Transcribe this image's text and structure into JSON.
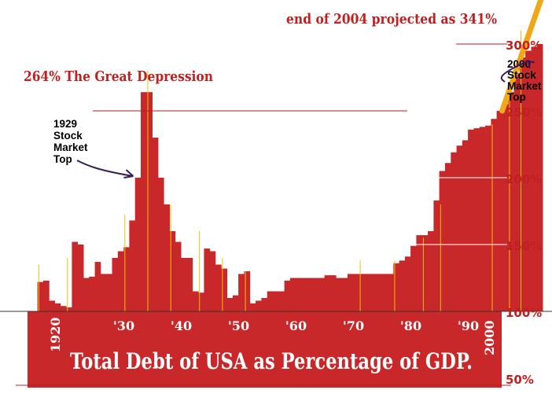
{
  "chart_data": {
    "type": "bar",
    "title": "Total Debt of USA as Percentage of GDP.",
    "ylim": [
      50,
      320
    ],
    "y_ticks": [
      {
        "value": 300,
        "label": "300%"
      },
      {
        "value": 250,
        "label": "250%"
      },
      {
        "value": 200,
        "label": "200%"
      },
      {
        "value": 150,
        "label": "150%"
      },
      {
        "value": 100,
        "label": "100%"
      },
      {
        "value": 50,
        "label": "50%"
      }
    ],
    "x_ticks": [
      {
        "year": 1920,
        "label": "1920",
        "vertical": true
      },
      {
        "year": 1930,
        "label": "'30",
        "vertical": false
      },
      {
        "year": 1940,
        "label": "'40",
        "vertical": false
      },
      {
        "year": 1950,
        "label": "'50",
        "vertical": false
      },
      {
        "year": 1960,
        "label": "'60",
        "vertical": false
      },
      {
        "year": 1970,
        "label": "'70",
        "vertical": false
      },
      {
        "year": 1980,
        "label": "'80",
        "vertical": false
      },
      {
        "year": 1990,
        "label": "'90",
        "vertical": false
      },
      {
        "year": 2000,
        "label": "2000",
        "vertical": true
      }
    ],
    "x": [
      1916,
      1917,
      1918,
      1919,
      1920,
      1921,
      1922,
      1923,
      1924,
      1925,
      1926,
      1927,
      1928,
      1929,
      1930,
      1931,
      1932,
      1933,
      1934,
      1935,
      1936,
      1937,
      1938,
      1939,
      1940,
      1941,
      1942,
      1943,
      1944,
      1945,
      1946,
      1947,
      1948,
      1949,
      1950,
      1951,
      1952,
      1953,
      1954,
      1955,
      1956,
      1957,
      1958,
      1959,
      1960,
      1961,
      1962,
      1963,
      1964,
      1965,
      1966,
      1967,
      1968,
      1969,
      1970,
      1971,
      1972,
      1973,
      1974,
      1975,
      1976,
      1977,
      1978,
      1979,
      1980,
      1981,
      1982,
      1983,
      1984,
      1985,
      1986,
      1987,
      1988,
      1989,
      1990,
      1991,
      1992,
      1993,
      1994,
      1995,
      1996,
      1997,
      1998,
      1999,
      2000,
      2001,
      2002,
      2003
    ],
    "values": [
      122,
      123,
      108,
      106,
      104,
      103,
      152,
      150,
      125,
      126,
      137,
      128,
      128,
      140,
      145,
      148,
      168,
      200,
      264,
      264,
      230,
      200,
      180,
      160,
      152,
      140,
      140,
      115,
      114,
      147,
      145,
      135,
      132,
      110,
      112,
      128,
      130,
      106,
      108,
      110,
      115,
      115,
      115,
      123,
      125,
      125,
      125,
      125,
      125,
      125,
      127,
      127,
      125,
      125,
      128,
      128,
      128,
      128,
      128,
      128,
      128,
      128,
      136,
      138,
      141,
      149,
      157,
      157,
      160,
      183,
      205,
      211,
      219,
      224,
      228,
      236,
      237,
      238,
      239,
      244,
      250,
      255,
      264,
      278,
      290,
      295,
      298,
      300
    ],
    "series": [
      {
        "values": [
          122,
          123,
          108,
          106,
          104,
          103,
          152,
          150,
          125,
          126,
          137,
          128,
          128,
          140,
          145,
          148,
          168,
          200,
          264,
          264,
          230,
          200,
          180,
          160,
          152,
          140,
          140,
          115,
          114,
          147,
          145,
          135,
          132,
          110,
          112,
          128,
          130,
          106,
          108,
          110,
          115,
          115,
          115,
          123,
          125,
          125,
          125,
          125,
          125,
          125,
          127,
          127,
          125,
          125,
          128,
          128,
          128,
          128,
          128,
          128,
          128,
          128,
          136,
          138,
          141,
          149,
          157,
          157,
          160,
          183,
          205,
          211,
          219,
          224,
          228,
          236,
          237,
          238,
          239,
          244,
          250,
          255,
          264,
          278,
          290,
          295,
          298,
          300
        ],
        "color": "#c8282a"
      }
    ],
    "projection": {
      "from": [
        1997,
        250
      ],
      "to": [
        2004,
        341
      ],
      "color": "#f0a818"
    },
    "annotations": [
      {
        "id": "projection",
        "text": "end of 2004 projected as 341%"
      },
      {
        "id": "depression",
        "text": "264%  The Great Depression"
      },
      {
        "id": "top1929",
        "lines": [
          "1929",
          "Stock",
          "Market",
          "Top"
        ],
        "arrow_to": [
          1933,
          200
        ]
      },
      {
        "id": "top2000",
        "lines": [
          "2000",
          "Stock",
          "Market",
          "Top"
        ],
        "arrow_to": [
          2001,
          285
        ]
      }
    ],
    "colors": {
      "bar": "#c8282a",
      "text": "#c0201f",
      "tick_line": "#f0c000",
      "guide": "#b02020"
    },
    "grid": false
  }
}
